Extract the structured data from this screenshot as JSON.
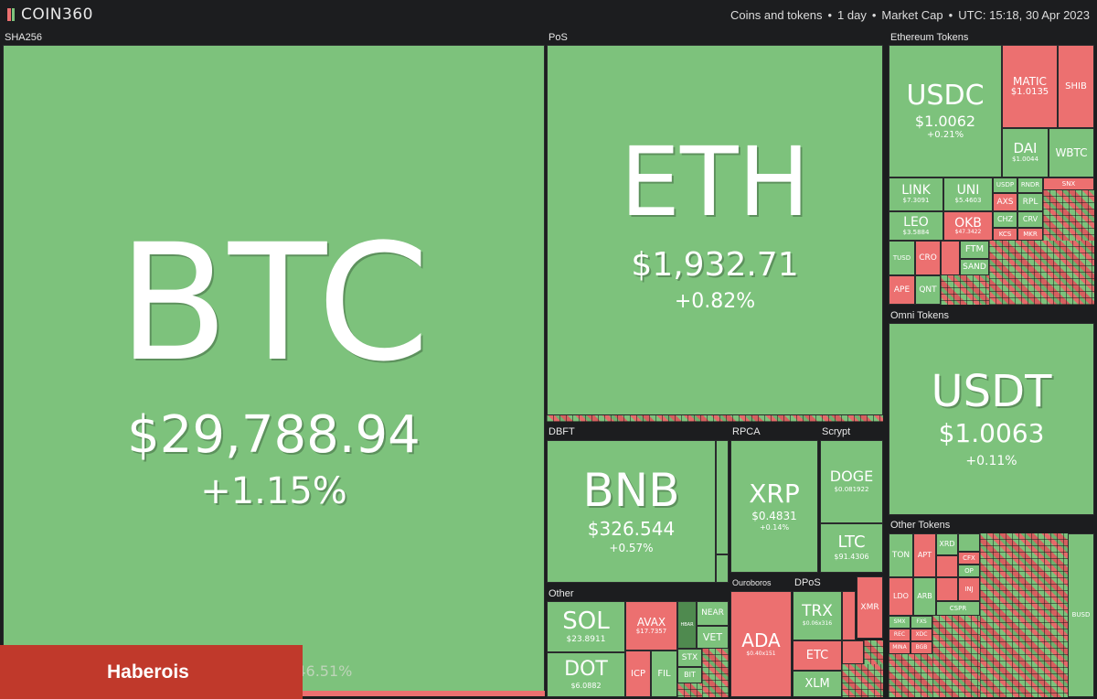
{
  "header": {
    "logo_text": "COIN360",
    "filters": [
      "Coins and tokens",
      "1 day",
      "Market Cap",
      "UTC: 15:18, 30 Apr 2023"
    ],
    "separator": "•"
  },
  "groups": {
    "sha256": "SHA256",
    "pos": "PoS",
    "ethereum_tokens": "Ethereum Tokens",
    "omni_tokens": "Omni Tokens",
    "dbft": "DBFT",
    "rpca": "RPCA",
    "scrypt": "Scrypt",
    "other": "Other",
    "ouroboros": "Ouroboros",
    "dpos": "DPoS",
    "other_tokens": "Other Tokens"
  },
  "tiles": {
    "btc": {
      "symbol": "BTC",
      "price": "$29,788.94",
      "change": "+1.15%"
    },
    "eth": {
      "symbol": "ETH",
      "price": "$1,932.71",
      "change": "+0.82%"
    },
    "usdc": {
      "symbol": "USDC",
      "price": "$1.0062",
      "change": "+0.21%"
    },
    "matic": {
      "symbol": "MATIC",
      "price": "$1.0135"
    },
    "shib": {
      "symbol": "SHIB"
    },
    "dai": {
      "symbol": "DAI",
      "price": "$1.0044"
    },
    "wbtc": {
      "symbol": "WBTC"
    },
    "link": {
      "symbol": "LINK",
      "price": "$7.3091"
    },
    "uni": {
      "symbol": "UNI",
      "price": "$5.4603"
    },
    "leo": {
      "symbol": "LEO",
      "price": "$3.5884"
    },
    "okb": {
      "symbol": "OKB",
      "price": "$47.3422"
    },
    "usdt": {
      "symbol": "USDT",
      "price": "$1.0063",
      "change": "+0.11%"
    },
    "bnb": {
      "symbol": "BNB",
      "price": "$326.544",
      "change": "+0.57%"
    },
    "xrp": {
      "symbol": "XRP",
      "price": "$0.4831",
      "change": "+0.14%"
    },
    "doge": {
      "symbol": "DOGE",
      "price": "$0.081922"
    },
    "ltc": {
      "symbol": "LTC",
      "price": "$91.4306"
    },
    "sol": {
      "symbol": "SOL",
      "price": "$23.8911"
    },
    "dot": {
      "symbol": "DOT",
      "price": "$6.0882"
    },
    "avax": {
      "symbol": "AVAX",
      "price": "$17.7357"
    },
    "near": {
      "symbol": "NEAR"
    },
    "vet": {
      "symbol": "VET"
    },
    "stx": {
      "symbol": "STX"
    },
    "icp": {
      "symbol": "ICP"
    },
    "fil": {
      "symbol": "FIL"
    },
    "bit": {
      "symbol": "BIT"
    },
    "hbar": {
      "symbol": "HBAR"
    },
    "ada": {
      "symbol": "ADA",
      "price": "$0.40x151"
    },
    "trx": {
      "symbol": "TRX",
      "price": "$0.06x316"
    },
    "etc": {
      "symbol": "ETC"
    },
    "xlm": {
      "symbol": "XLM"
    },
    "xmr": {
      "symbol": "XMR"
    },
    "ton": {
      "symbol": "TON"
    },
    "apt": {
      "symbol": "APT"
    },
    "xrd": {
      "symbol": "XRD"
    },
    "op": {
      "symbol": "OP"
    },
    "cfx": {
      "symbol": "CFX"
    },
    "inj": {
      "symbol": "INJ"
    },
    "cspr": {
      "symbol": "CSPR"
    },
    "ldo": {
      "symbol": "LDO"
    },
    "arb": {
      "symbol": "ARB"
    },
    "smx": {
      "symbol": "SMX"
    },
    "fxs": {
      "symbol": "FXS"
    },
    "rec": {
      "symbol": "REC"
    },
    "xdc": {
      "symbol": "XDC"
    },
    "mina": {
      "symbol": "MINA"
    },
    "bgb": {
      "symbol": "BGB"
    },
    "busd": {
      "symbol": "BUSD"
    },
    "axs": {
      "symbol": "AXS"
    },
    "rpl": {
      "symbol": "RPL"
    },
    "chz": {
      "symbol": "CHZ"
    },
    "crv": {
      "symbol": "CRV"
    },
    "kcs": {
      "symbol": "KCS"
    },
    "mkr": {
      "symbol": "MKR"
    },
    "ftm": {
      "symbol": "FTM"
    },
    "sand": {
      "symbol": "SAND"
    },
    "cro": {
      "symbol": "CRO"
    },
    "ape": {
      "symbol": "APE"
    },
    "qnt": {
      "symbol": "QNT"
    },
    "tusd": {
      "symbol": "TUSD"
    },
    "usdp": {
      "symbol": "USDP"
    },
    "rndr": {
      "symbol": "RNDR"
    },
    "snx": {
      "symbol": "SNX"
    }
  },
  "footer": {
    "banner": "Haberois",
    "dominance": "Dominance: 46.51%"
  },
  "colors": {
    "up": "#7dc27c",
    "down": "#ec7070",
    "background": "#1c1d1f",
    "banner": "#c0392b"
  }
}
